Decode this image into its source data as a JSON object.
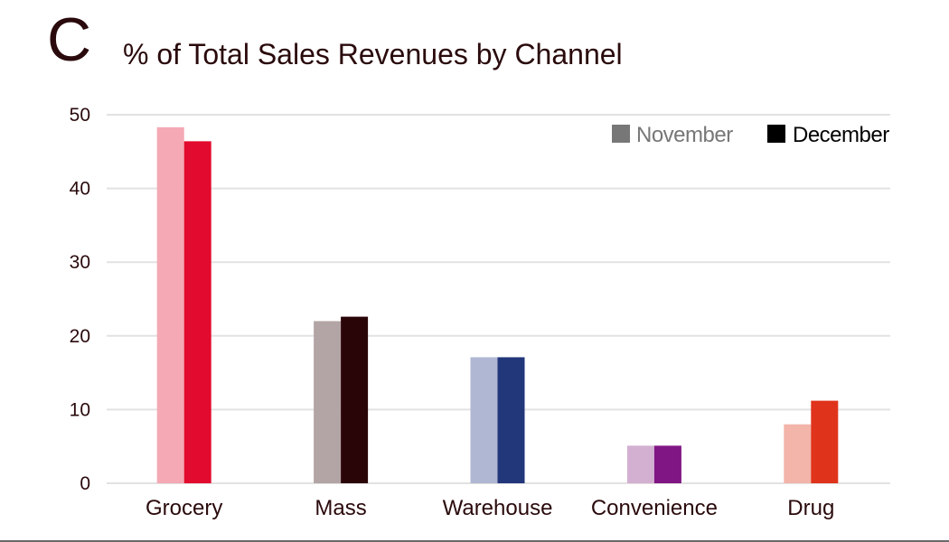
{
  "panel_label": "C",
  "chart_data": {
    "type": "bar",
    "title": "% of Total Sales Revenues by Channel",
    "xlabel": "",
    "ylabel": "",
    "ylim": [
      0,
      50
    ],
    "yticks": [
      0,
      10,
      20,
      30,
      40,
      50
    ],
    "grid": true,
    "legend_position": "top-right",
    "categories": [
      "Grocery",
      "Mass",
      "Warehouse",
      "Convenience",
      "Drug"
    ],
    "series": [
      {
        "name": "November",
        "values": [
          48.3,
          22.0,
          17.1,
          5.1,
          8.0
        ],
        "legend_color": "#777777"
      },
      {
        "name": "December",
        "values": [
          46.4,
          22.6,
          17.1,
          5.1,
          11.2
        ],
        "legend_color": "#000000"
      }
    ],
    "bar_colors": {
      "November": [
        "#f4a9b4",
        "#b3a5a5",
        "#b0b7d3",
        "#d3b0d1",
        "#f3b4aa"
      ],
      "December": [
        "#e20a2e",
        "#2a0508",
        "#22367a",
        "#801683",
        "#e0331c"
      ]
    }
  }
}
